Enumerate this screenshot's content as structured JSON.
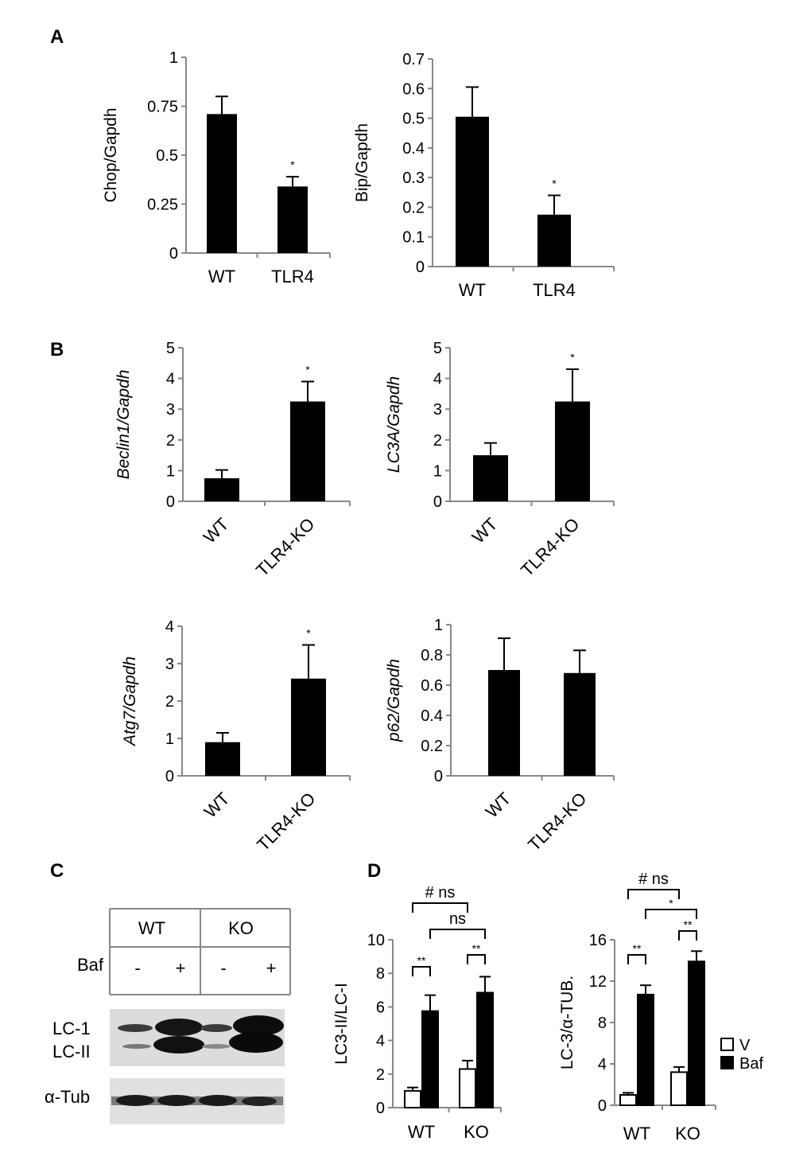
{
  "panels": {
    "A": "A",
    "B": "B",
    "C": "C",
    "D": "D"
  },
  "colors": {
    "bar": "#000000",
    "axis": "#888888",
    "open_bar": "#ffffff"
  },
  "chart_data": [
    {
      "id": "chop",
      "type": "bar",
      "ylabel": "Chop/Gapdh",
      "ylabel_italic": false,
      "categories": [
        "WT",
        "TLR4"
      ],
      "values": [
        0.71,
        0.34
      ],
      "errors": [
        0.09,
        0.05
      ],
      "annotations": [
        "",
        "*"
      ],
      "ylim": [
        0,
        1
      ],
      "yticks": [
        0,
        0.25,
        0.5,
        0.75,
        1
      ],
      "ytick_labels": [
        "0",
        "0.25",
        "0.5",
        "0.75",
        "1"
      ]
    },
    {
      "id": "bip",
      "type": "bar",
      "ylabel": "Bip/Gapdh",
      "ylabel_italic": false,
      "categories": [
        "WT",
        "TLR4"
      ],
      "values": [
        0.505,
        0.175
      ],
      "errors": [
        0.1,
        0.065
      ],
      "annotations": [
        "",
        "*"
      ],
      "ylim": [
        0,
        0.7
      ],
      "yticks": [
        0,
        0.1,
        0.2,
        0.3,
        0.4,
        0.5,
        0.6,
        0.7
      ],
      "ytick_labels": [
        "0",
        "0.1",
        "0.2",
        "0.3",
        "0.4",
        "0.5",
        "0.6",
        "0.7"
      ]
    },
    {
      "id": "beclin1",
      "type": "bar",
      "ylabel": "Beclin1/Gapdh",
      "ylabel_italic": true,
      "categories": [
        "WT",
        "TLR4-KO"
      ],
      "values": [
        0.75,
        3.25
      ],
      "errors": [
        0.27,
        0.65
      ],
      "annotations": [
        "",
        "*"
      ],
      "ylim": [
        0,
        5
      ],
      "yticks": [
        0,
        1,
        2,
        3,
        4,
        5
      ],
      "ytick_labels": [
        "0",
        "1",
        "2",
        "3",
        "4",
        "5"
      ]
    },
    {
      "id": "lc3a",
      "type": "bar",
      "ylabel": "LC3A/Gapdh",
      "ylabel_italic": true,
      "categories": [
        "WT",
        "TLR4-KO"
      ],
      "values": [
        1.5,
        3.25
      ],
      "errors": [
        0.4,
        1.05
      ],
      "annotations": [
        "",
        "*"
      ],
      "ylim": [
        0,
        5
      ],
      "yticks": [
        0,
        1,
        2,
        3,
        4,
        5
      ],
      "ytick_labels": [
        "0",
        "1",
        "2",
        "3",
        "4",
        "5"
      ]
    },
    {
      "id": "atg7",
      "type": "bar",
      "ylabel": "Atg7/Gapdh",
      "ylabel_italic": true,
      "categories": [
        "WT",
        "TLR4-KO"
      ],
      "values": [
        0.9,
        2.6
      ],
      "errors": [
        0.25,
        0.9
      ],
      "annotations": [
        "",
        "*"
      ],
      "ylim": [
        0,
        4
      ],
      "yticks": [
        0,
        1,
        2,
        3,
        4
      ],
      "ytick_labels": [
        "0",
        "1",
        "2",
        "3",
        "4"
      ]
    },
    {
      "id": "p62",
      "type": "bar",
      "ylabel": "p62/Gapdh",
      "ylabel_italic": true,
      "categories": [
        "WT",
        "TLR4-KO"
      ],
      "values": [
        0.7,
        0.68
      ],
      "errors": [
        0.21,
        0.15
      ],
      "annotations": [
        "",
        ""
      ],
      "ylim": [
        0,
        1
      ],
      "yticks": [
        0,
        0.2,
        0.4,
        0.6,
        0.8,
        1
      ],
      "ytick_labels": [
        "0",
        "0.2",
        "0.4",
        "0.6",
        "0.8",
        "1"
      ]
    },
    {
      "id": "lc3ratio",
      "type": "bar",
      "ylabel": "LC3-II/LC-I",
      "ylabel_italic": false,
      "categories": [
        "WT",
        "KO"
      ],
      "series": [
        {
          "name": "V",
          "values": [
            1.0,
            2.3
          ],
          "errors": [
            0.2,
            0.5
          ]
        },
        {
          "name": "Baf",
          "values": [
            5.75,
            6.85
          ],
          "errors": [
            0.95,
            0.95
          ]
        }
      ],
      "ylim": [
        0,
        10
      ],
      "yticks": [
        0,
        2,
        4,
        6,
        8,
        10
      ],
      "ytick_labels": [
        "0",
        "2",
        "4",
        "6",
        "8",
        "10"
      ],
      "brackets": [
        {
          "text": "**",
          "a": [
            0,
            0
          ],
          "b": [
            0,
            1
          ]
        },
        {
          "text": "**",
          "a": [
            1,
            0
          ],
          "b": [
            1,
            1
          ]
        },
        {
          "text": "ns",
          "a": [
            0,
            1
          ],
          "b": [
            1,
            1
          ]
        },
        {
          "text": "# ns",
          "a": [
            0,
            0
          ],
          "b": [
            1,
            0
          ]
        }
      ]
    },
    {
      "id": "lc3tub",
      "type": "bar",
      "ylabel": "LC-3/α-TUB.",
      "ylabel_italic": false,
      "categories": [
        "WT",
        "KO"
      ],
      "series": [
        {
          "name": "V",
          "values": [
            1.0,
            3.2
          ],
          "errors": [
            0.2,
            0.5
          ]
        },
        {
          "name": "Baf",
          "values": [
            10.7,
            13.9
          ],
          "errors": [
            0.9,
            1.0
          ]
        }
      ],
      "ylim": [
        0,
        16
      ],
      "yticks": [
        0,
        4,
        8,
        12,
        16
      ],
      "ytick_labels": [
        "0",
        "4",
        "8",
        "12",
        "16"
      ],
      "brackets": [
        {
          "text": "**",
          "a": [
            0,
            0
          ],
          "b": [
            0,
            1
          ]
        },
        {
          "text": "**",
          "a": [
            1,
            0
          ],
          "b": [
            1,
            1
          ]
        },
        {
          "text": "*",
          "a": [
            0,
            1
          ],
          "b": [
            1,
            1
          ]
        },
        {
          "text": "# ns",
          "a": [
            0,
            0
          ],
          "b": [
            1,
            0
          ]
        }
      ]
    }
  ],
  "legend": {
    "items": [
      {
        "label": "V",
        "fill": "#ffffff"
      },
      {
        "label": "Baf",
        "fill": "#000000"
      }
    ]
  },
  "blot": {
    "groups": [
      "WT",
      "KO"
    ],
    "row_label": "Baf",
    "treatments": [
      "-",
      "+",
      "-",
      "+"
    ],
    "lc_labels": [
      "LC-1",
      "LC-II"
    ],
    "tub_label": "α-Tub"
  }
}
